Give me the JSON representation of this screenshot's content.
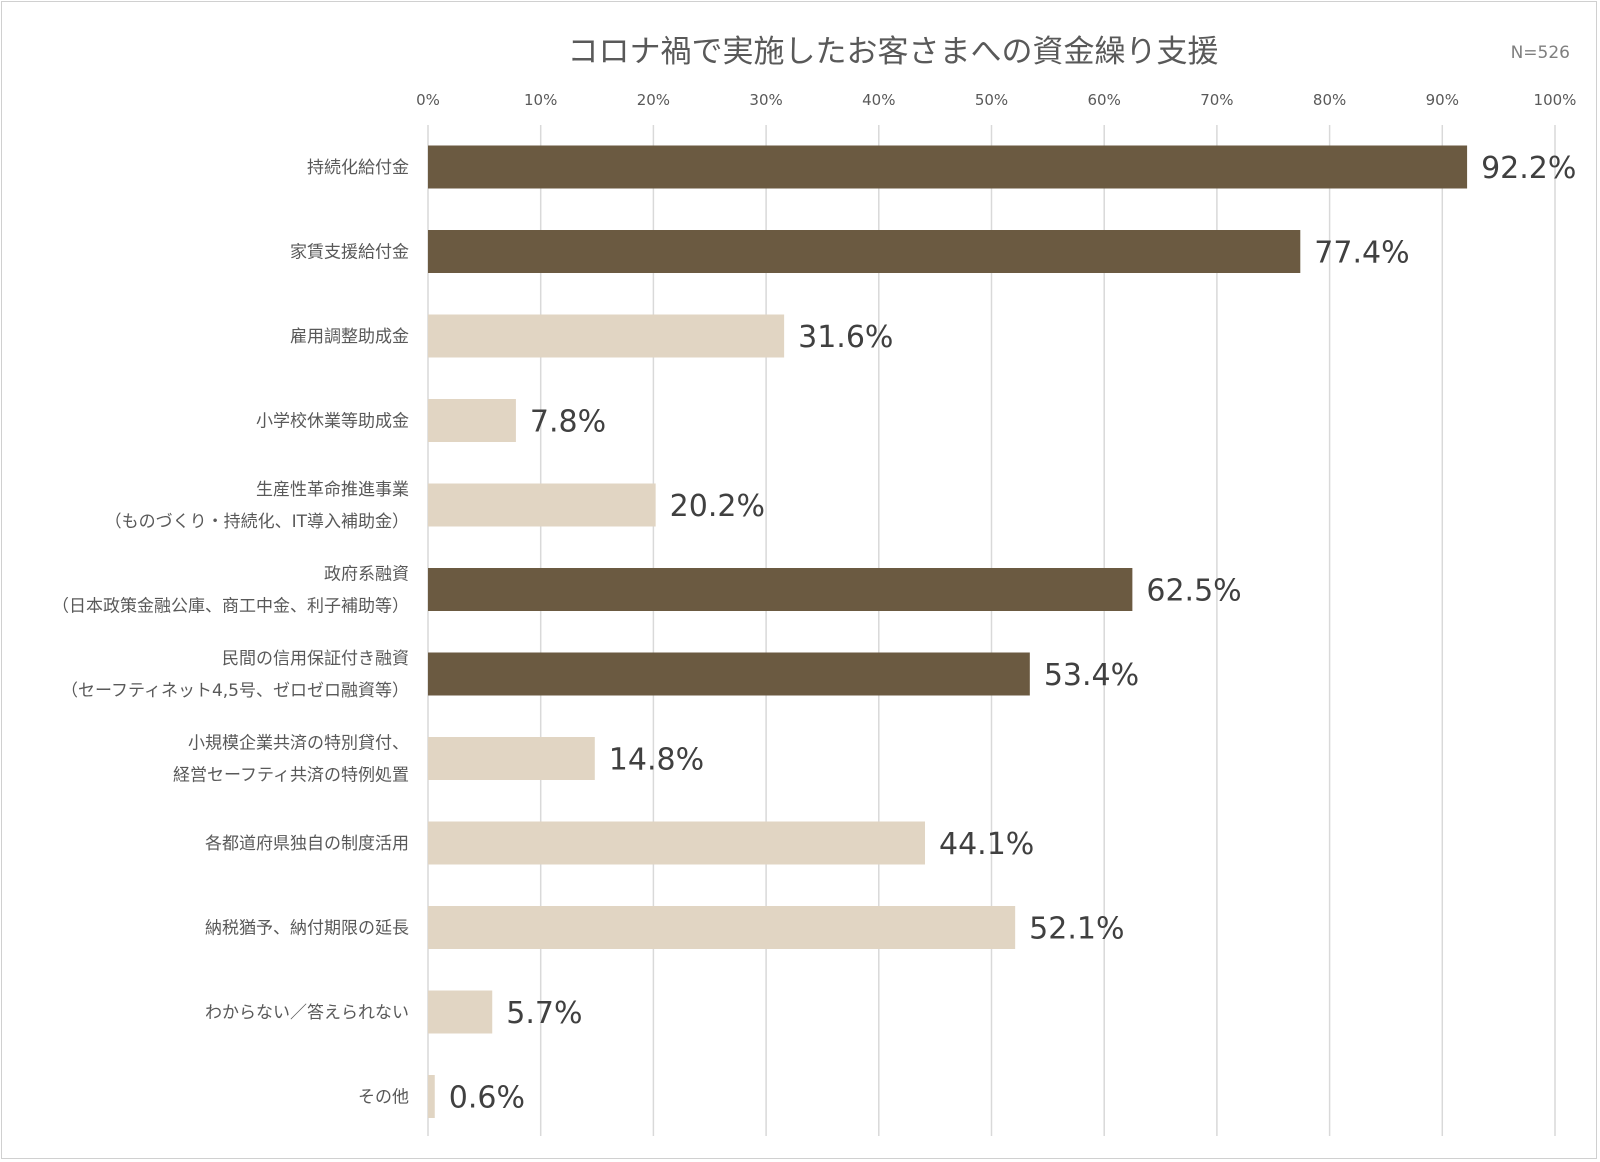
{
  "chart_data": {
    "type": "bar",
    "orientation": "horizontal",
    "title": "コロナ禍で実施したお客さまへの資金繰り支援",
    "note": "N=526",
    "xlim": [
      0,
      100
    ],
    "x_ticks": [
      "0%",
      "10%",
      "20%",
      "30%",
      "40%",
      "50%",
      "60%",
      "70%",
      "80%",
      "90%",
      "100%"
    ],
    "grid": true,
    "value_format": "percent_1dp",
    "colors": {
      "highlight": "#6b5a41",
      "normal": "#e1d5c3"
    },
    "categories": [
      {
        "label": [
          "持続化給付金"
        ],
        "value": 92.2,
        "value_label": "92.2%",
        "highlight": true
      },
      {
        "label": [
          "家賃支援給付金"
        ],
        "value": 77.4,
        "value_label": "77.4%",
        "highlight": true
      },
      {
        "label": [
          "雇用調整助成金"
        ],
        "value": 31.6,
        "value_label": "31.6%",
        "highlight": false
      },
      {
        "label": [
          "小学校休業等助成金"
        ],
        "value": 7.8,
        "value_label": "7.8%",
        "highlight": false
      },
      {
        "label": [
          "生産性革命推進事業",
          "（ものづくり・持続化、IT導入補助金）"
        ],
        "value": 20.2,
        "value_label": "20.2%",
        "highlight": false
      },
      {
        "label": [
          "政府系融資",
          "（日本政策金融公庫、商工中金、利子補助等）"
        ],
        "value": 62.5,
        "value_label": "62.5%",
        "highlight": true
      },
      {
        "label": [
          "民間の信用保証付き融資",
          "（セーフティネット4,5号、ゼロゼロ融資等）"
        ],
        "value": 53.4,
        "value_label": "53.4%",
        "highlight": true
      },
      {
        "label": [
          "小規模企業共済の特別貸付、",
          "経営セーフティ共済の特例処置"
        ],
        "value": 14.8,
        "value_label": "14.8%",
        "highlight": false
      },
      {
        "label": [
          "各都道府県独自の制度活用"
        ],
        "value": 44.1,
        "value_label": "44.1%",
        "highlight": false
      },
      {
        "label": [
          "納税猶予、納付期限の延長"
        ],
        "value": 52.1,
        "value_label": "52.1%",
        "highlight": false
      },
      {
        "label": [
          "わからない／答えられない"
        ],
        "value": 5.7,
        "value_label": "5.7%",
        "highlight": false
      },
      {
        "label": [
          "その他"
        ],
        "value": 0.6,
        "value_label": "0.6%",
        "highlight": false
      }
    ]
  }
}
